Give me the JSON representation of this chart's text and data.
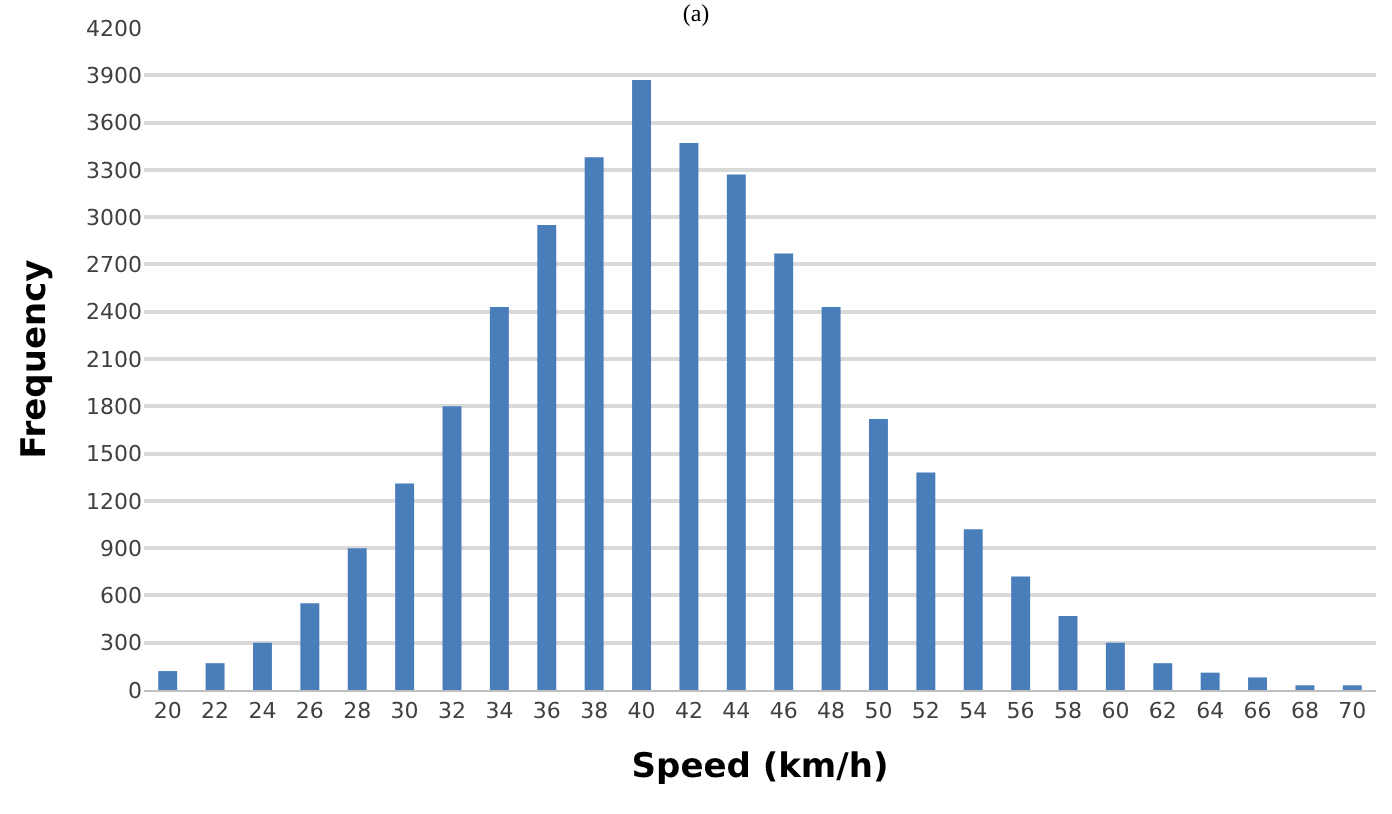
{
  "chart_data": {
    "type": "bar",
    "title": "(a)",
    "xlabel": "Speed (km/h)",
    "ylabel": "Frequency",
    "categories": [
      "20",
      "22",
      "24",
      "26",
      "28",
      "30",
      "32",
      "34",
      "36",
      "38",
      "40",
      "42",
      "44",
      "46",
      "48",
      "50",
      "52",
      "54",
      "56",
      "58",
      "60",
      "62",
      "64",
      "66",
      "68",
      "70"
    ],
    "values": [
      120,
      170,
      300,
      550,
      900,
      1310,
      1800,
      2430,
      2950,
      3380,
      3870,
      3470,
      3270,
      2770,
      2430,
      1720,
      1380,
      1020,
      720,
      470,
      300,
      170,
      110,
      80,
      30,
      30
    ],
    "color": "#4a7ebb",
    "ylim": [
      0,
      4200
    ],
    "yticks": [
      0,
      300,
      600,
      900,
      1200,
      1500,
      1800,
      2100,
      2400,
      2700,
      3000,
      3300,
      3600,
      3900,
      4200
    ],
    "grid": "y"
  }
}
